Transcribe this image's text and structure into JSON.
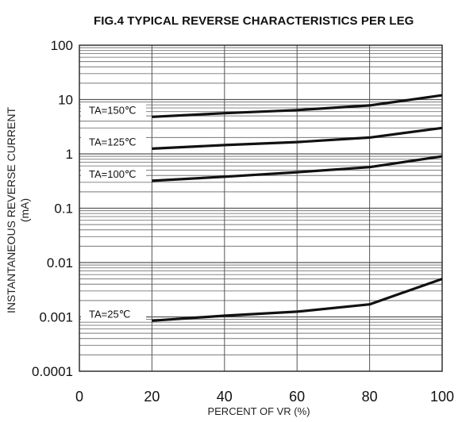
{
  "chart_data": {
    "type": "line",
    "title": "FIG.4 TYPICAL REVERSE CHARACTERISTICS PER LEG",
    "xlabel": "PERCENT OF VR (%)",
    "ylabel": [
      "INSTANTANEOUS REVERSE CURRENT",
      "(mA)"
    ],
    "x_ticks": [
      "0",
      "20",
      "40",
      "60",
      "80",
      "100"
    ],
    "y_ticks": [
      "0.0001",
      "0.001",
      "0.01",
      "0.1",
      "1",
      "10",
      "100"
    ],
    "xlim": [
      0,
      100
    ],
    "ylim": [
      0.0001,
      100
    ],
    "y_scale": "log",
    "grid": true,
    "series": [
      {
        "name": "TA=150℃",
        "x": [
          20,
          40,
          60,
          80,
          100
        ],
        "y": [
          4.8,
          5.6,
          6.4,
          7.8,
          12
        ]
      },
      {
        "name": "TA=125℃",
        "x": [
          20,
          40,
          60,
          80,
          100
        ],
        "y": [
          1.25,
          1.45,
          1.65,
          2.0,
          3.0
        ]
      },
      {
        "name": "TA=100℃",
        "x": [
          20,
          40,
          60,
          80,
          100
        ],
        "y": [
          0.32,
          0.38,
          0.46,
          0.57,
          0.9
        ]
      },
      {
        "name": "TA=25℃",
        "x": [
          20,
          40,
          60,
          80,
          100
        ],
        "y": [
          0.00085,
          0.00105,
          0.00125,
          0.0017,
          0.005
        ]
      }
    ]
  }
}
